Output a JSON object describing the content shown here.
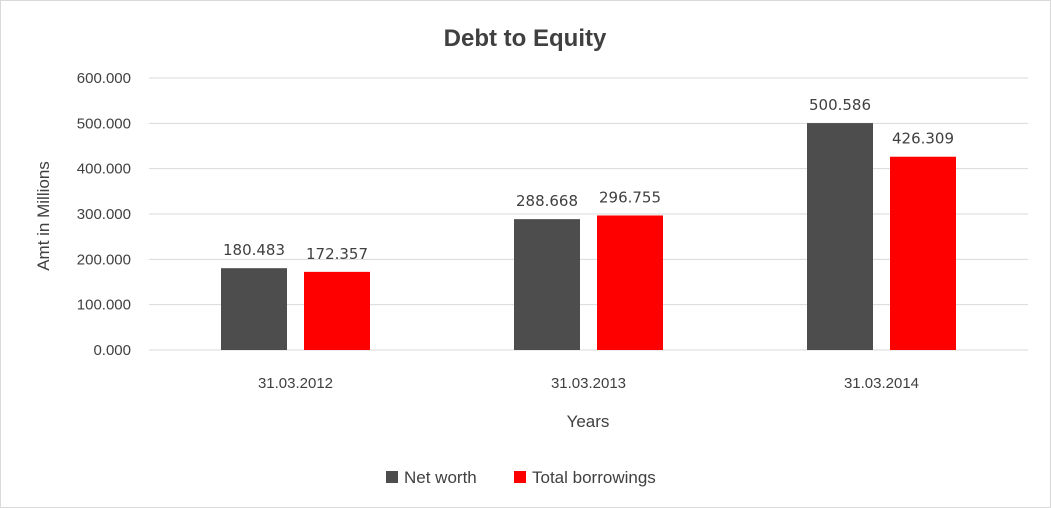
{
  "chart_data": {
    "type": "bar",
    "title": "Debt to Equity",
    "xlabel": "Years",
    "ylabel": "Amt in Millions",
    "categories": [
      "31.03.2012",
      "31.03.2013",
      "31.03.2014"
    ],
    "series": [
      {
        "name": "Net worth",
        "values": [
          180.483,
          288.668,
          500.586
        ],
        "labels": [
          "180.483",
          "288.668",
          "500.586"
        ],
        "color": "#4d4d4d"
      },
      {
        "name": "Total borrowings",
        "values": [
          172.357,
          296.755,
          426.309
        ],
        "labels": [
          "172.357",
          "296.755",
          "426.309"
        ],
        "color": "#ff0000"
      }
    ],
    "ylim": [
      0,
      600
    ],
    "yticks": [
      "0.000",
      "100.000",
      "200.000",
      "300.000",
      "400.000",
      "500.000",
      "600.000"
    ],
    "grid": true,
    "legend_position": "bottom"
  }
}
